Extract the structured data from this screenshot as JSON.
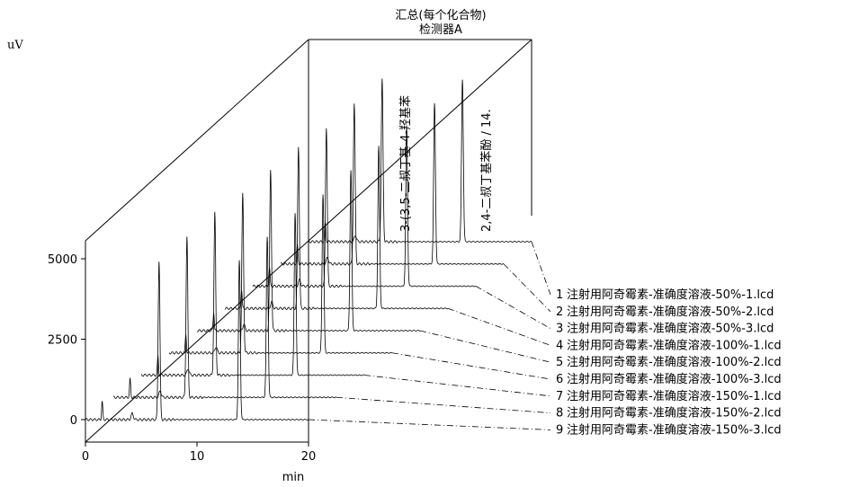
{
  "title": "汇总(每个化合物)",
  "subtitle": "检测器A",
  "chart_data": {
    "type": "line",
    "style": "3d-stacked-chromatogram",
    "ylabel": "uV",
    "xlabel": "min",
    "x_ticks": [
      0,
      10,
      20
    ],
    "y_ticks": [
      0,
      2500,
      5000
    ],
    "xlim": [
      0,
      20
    ],
    "ylim": [
      -500,
      6000
    ],
    "grid": false,
    "legend_position": "right",
    "peak_annotations": [
      "3-(3,5-二叔丁基-4-羟基苯",
      "2,4-二叔丁基苯酚 / 14."
    ],
    "peaks": [
      {
        "rt": 1.5,
        "height": 600,
        "width": 0.05
      },
      {
        "rt": 4.2,
        "height": 200,
        "width": 0.1
      },
      {
        "rt": 6.6,
        "height": 5200,
        "width": 0.08
      },
      {
        "rt": 13.8,
        "height": 5200,
        "width": 0.08
      }
    ],
    "series": [
      {
        "name": "注射用阿奇霉素-准确度溶液-50%-1.lcd",
        "index": "1"
      },
      {
        "name": "注射用阿奇霉素-准确度溶液-50%-2.lcd",
        "index": "2"
      },
      {
        "name": "注射用阿奇霉素-准确度溶液-50%-3.lcd",
        "index": "3"
      },
      {
        "name": "注射用阿奇霉素-准确度溶液-100%-1.lcd",
        "index": "4"
      },
      {
        "name": "注射用阿奇霉素-准确度溶液-100%-2.lcd",
        "index": "5"
      },
      {
        "name": "注射用阿奇霉素-准确度溶液-100%-3.lcd",
        "index": "6"
      },
      {
        "name": "注射用阿奇霉素-准确度溶液-150%-1.lcd",
        "index": "7"
      },
      {
        "name": "注射用阿奇霉素-准确度溶液-150%-2.lcd",
        "index": "8"
      },
      {
        "name": "注射用阿奇霉素-准确度溶液-150%-3.lcd",
        "index": "9"
      }
    ]
  }
}
